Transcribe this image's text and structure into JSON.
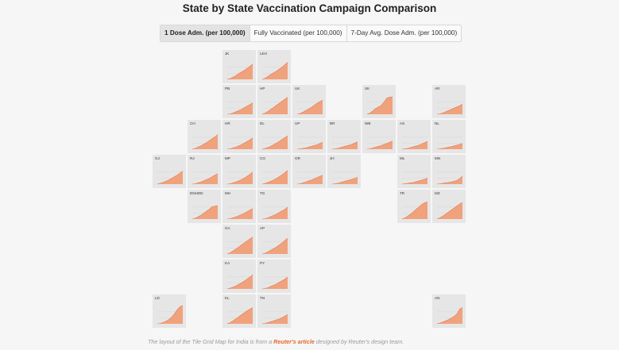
{
  "title": "State by State Vaccination Campaign Comparison",
  "tabs": [
    {
      "label": "1 Dose Adm. (per 100,000)",
      "active": true
    },
    {
      "label": "Fully Vaccinated (per 100,000)",
      "active": false
    },
    {
      "label": "7-Day Avg. Dose Adm. (per 100,000)",
      "active": false
    }
  ],
  "footer": {
    "before": "The layout of the Tile Grid Map for India is from a",
    "link": "Reuter's article",
    "after": "designed by Reuter's design team."
  },
  "colors": {
    "fill": "#f0a27d",
    "stroke": "#e4794c",
    "tile": "#e6e6e6"
  },
  "chart_data": {
    "type": "area",
    "layout": "tile-grid-map",
    "tiles": [
      {
        "code": "JK",
        "col": 2,
        "row": 0,
        "values": [
          0,
          2,
          5,
          9,
          14,
          18,
          22,
          27,
          32,
          38
        ]
      },
      {
        "code": "LEH",
        "col": 3,
        "row": 0,
        "values": [
          0,
          3,
          7,
          12,
          16,
          20,
          25,
          30,
          36,
          42
        ]
      },
      {
        "code": "PB",
        "col": 2,
        "row": 1,
        "values": [
          0,
          1,
          3,
          6,
          9,
          12,
          16,
          20,
          24,
          28
        ]
      },
      {
        "code": "HP",
        "col": 3,
        "row": 1,
        "values": [
          0,
          3,
          7,
          12,
          17,
          22,
          27,
          32,
          37,
          42
        ]
      },
      {
        "code": "UK",
        "col": 4,
        "row": 1,
        "values": [
          0,
          2,
          5,
          9,
          13,
          17,
          22,
          27,
          31,
          35
        ]
      },
      {
        "code": "SK",
        "col": 6,
        "row": 1,
        "values": [
          0,
          3,
          8,
          14,
          18,
          22,
          30,
          40,
          42,
          43
        ]
      },
      {
        "code": "AR",
        "col": 8,
        "row": 1,
        "values": [
          0,
          1,
          3,
          6,
          9,
          12,
          15,
          18,
          21,
          25
        ]
      },
      {
        "code": "CH",
        "col": 1,
        "row": 2,
        "values": [
          0,
          2,
          5,
          8,
          12,
          16,
          21,
          26,
          30,
          36
        ]
      },
      {
        "code": "HR",
        "col": 2,
        "row": 2,
        "values": [
          0,
          1,
          3,
          5,
          8,
          11,
          15,
          19,
          23,
          28
        ]
      },
      {
        "code": "DL",
        "col": 3,
        "row": 2,
        "values": [
          0,
          2,
          4,
          7,
          11,
          15,
          19,
          24,
          28,
          33
        ]
      },
      {
        "code": "UP",
        "col": 4,
        "row": 2,
        "values": [
          0,
          1,
          2,
          3,
          5,
          7,
          9,
          11,
          14,
          17
        ]
      },
      {
        "code": "BR",
        "col": 5,
        "row": 2,
        "values": [
          0,
          1,
          2,
          4,
          6,
          8,
          10,
          12,
          15,
          18
        ]
      },
      {
        "code": "WB",
        "col": 6,
        "row": 2,
        "values": [
          0,
          1,
          3,
          5,
          7,
          9,
          12,
          14,
          17,
          20
        ]
      },
      {
        "code": "AS",
        "col": 7,
        "row": 2,
        "values": [
          0,
          1,
          2,
          4,
          6,
          8,
          10,
          13,
          16,
          19
        ]
      },
      {
        "code": "NL",
        "col": 8,
        "row": 2,
        "values": [
          0,
          1,
          2,
          3,
          5,
          6,
          8,
          10,
          12,
          14
        ]
      },
      {
        "code": "GJ",
        "col": 0,
        "row": 3,
        "values": [
          0,
          2,
          4,
          7,
          10,
          14,
          18,
          22,
          27,
          32
        ]
      },
      {
        "code": "RJ",
        "col": 1,
        "row": 3,
        "values": [
          0,
          1,
          3,
          5,
          8,
          11,
          14,
          18,
          22,
          26
        ]
      },
      {
        "code": "MP",
        "col": 2,
        "row": 3,
        "values": [
          0,
          1,
          3,
          5,
          8,
          11,
          15,
          19,
          24,
          30
        ]
      },
      {
        "code": "CG",
        "col": 3,
        "row": 3,
        "values": [
          0,
          2,
          4,
          7,
          10,
          14,
          18,
          23,
          28,
          34
        ]
      },
      {
        "code": "OR",
        "col": 4,
        "row": 3,
        "values": [
          0,
          1,
          3,
          5,
          8,
          10,
          13,
          16,
          19,
          22
        ]
      },
      {
        "code": "JH",
        "col": 5,
        "row": 3,
        "values": [
          0,
          1,
          2,
          4,
          6,
          8,
          10,
          12,
          14,
          17
        ]
      },
      {
        "code": "ML",
        "col": 7,
        "row": 3,
        "values": [
          0,
          1,
          2,
          3,
          4,
          6,
          8,
          10,
          12,
          15
        ]
      },
      {
        "code": "MN",
        "col": 8,
        "row": 3,
        "values": [
          0,
          1,
          2,
          3,
          4,
          5,
          7,
          9,
          13,
          20
        ]
      },
      {
        "code": "DNHDD",
        "col": 1,
        "row": 4,
        "values": [
          0,
          2,
          5,
          9,
          14,
          19,
          24,
          30,
          32,
          33
        ]
      },
      {
        "code": "MH",
        "col": 2,
        "row": 4,
        "values": [
          0,
          1,
          3,
          5,
          8,
          11,
          14,
          18,
          22,
          26
        ]
      },
      {
        "code": "TG",
        "col": 3,
        "row": 4,
        "values": [
          0,
          1,
          3,
          6,
          9,
          12,
          16,
          20,
          24,
          29
        ]
      },
      {
        "code": "TR",
        "col": 7,
        "row": 4,
        "values": [
          0,
          3,
          7,
          12,
          18,
          24,
          30,
          36,
          40,
          42
        ]
      },
      {
        "code": "MZ",
        "col": 8,
        "row": 4,
        "values": [
          0,
          3,
          7,
          12,
          17,
          22,
          27,
          32,
          37,
          41
        ]
      },
      {
        "code": "GA",
        "col": 2,
        "row": 5,
        "values": [
          0,
          3,
          7,
          12,
          17,
          22,
          27,
          32,
          37,
          42
        ]
      },
      {
        "code": "AP",
        "col": 3,
        "row": 5,
        "values": [
          0,
          2,
          5,
          9,
          13,
          17,
          22,
          27,
          33,
          39
        ]
      },
      {
        "code": "KA",
        "col": 2,
        "row": 6,
        "values": [
          0,
          2,
          4,
          7,
          11,
          15,
          19,
          24,
          29,
          35
        ]
      },
      {
        "code": "PY",
        "col": 3,
        "row": 6,
        "values": [
          0,
          1,
          3,
          6,
          9,
          12,
          16,
          20,
          24,
          29
        ]
      },
      {
        "code": "LD",
        "col": 0,
        "row": 7,
        "values": [
          0,
          1,
          3,
          6,
          10,
          16,
          24,
          34,
          42,
          45
        ]
      },
      {
        "code": "KL",
        "col": 2,
        "row": 7,
        "values": [
          0,
          3,
          7,
          12,
          17,
          22,
          27,
          32,
          36,
          40
        ]
      },
      {
        "code": "TN",
        "col": 3,
        "row": 7,
        "values": [
          0,
          1,
          3,
          5,
          7,
          10,
          12,
          15,
          19,
          23
        ]
      },
      {
        "code": "AN",
        "col": 8,
        "row": 7,
        "values": [
          0,
          2,
          4,
          7,
          10,
          14,
          18,
          24,
          36,
          40
        ]
      }
    ]
  }
}
